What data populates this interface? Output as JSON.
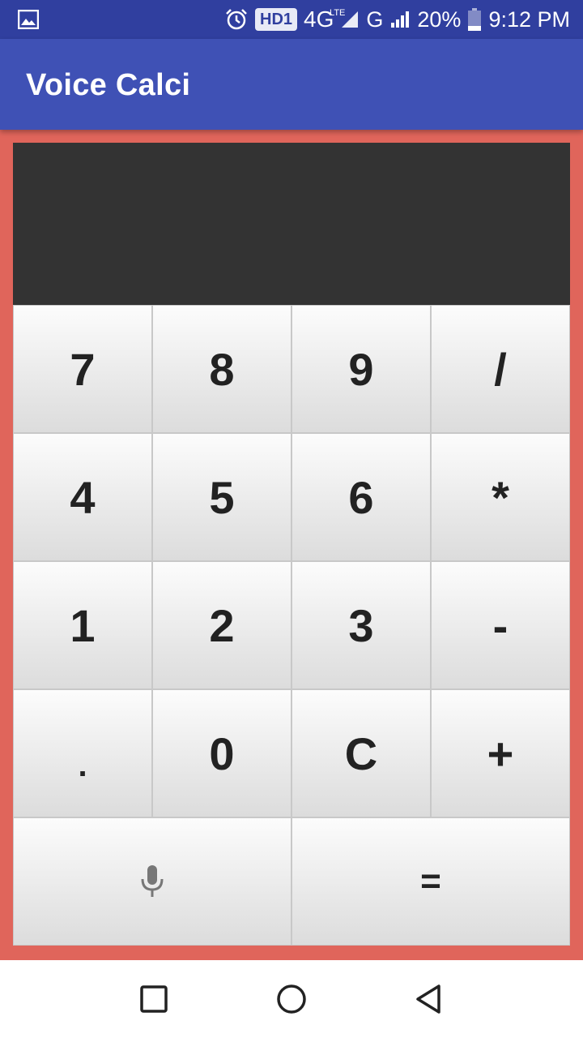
{
  "status_bar": {
    "hd_label": "HD1",
    "network_4g": "4G",
    "lte_label": "LTE",
    "network_g": "G",
    "battery_percent": "20%",
    "time": "9:12 PM",
    "icons": [
      "gallery-icon",
      "alarm-icon",
      "signal-icon",
      "battery-icon"
    ]
  },
  "app_bar": {
    "title": "Voice Calci"
  },
  "display": {
    "value": ""
  },
  "keypad": {
    "rows": [
      [
        "7",
        "8",
        "9",
        "/"
      ],
      [
        "4",
        "5",
        "6",
        "*"
      ],
      [
        "1",
        "2",
        "3",
        "-"
      ],
      [
        ".",
        "0",
        "C",
        "+"
      ]
    ],
    "mic_icon": "microphone-icon",
    "equals": "="
  },
  "nav_bar": {
    "icons": [
      "recent-apps-icon",
      "home-icon",
      "back-icon"
    ]
  },
  "colors": {
    "status_bar": "#303f9f",
    "app_bar": "#3f51b5",
    "frame": "#e0655b",
    "display": "#333333"
  }
}
